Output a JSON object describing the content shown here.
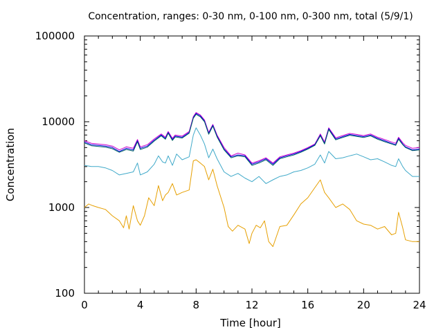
{
  "chart_data": {
    "type": "line",
    "title": "Concentration, ranges: 0-30 nm, 0-100 nm, 0-300 nm, total (5/9/1)",
    "xlabel": "Time [hour]",
    "ylabel": "Concentration",
    "xlim": [
      0,
      24
    ],
    "ylim": [
      100,
      100000
    ],
    "y_scale": "log",
    "grid": false,
    "x_ticks": [
      0,
      4,
      8,
      12,
      16,
      20,
      24
    ],
    "x_tick_labels": [
      "0",
      "4",
      "8",
      "12",
      "16",
      "20",
      "24"
    ],
    "y_ticks": [
      100,
      1000,
      10000,
      100000
    ],
    "y_tick_labels": [
      "100",
      "1000",
      "10000",
      "100000"
    ],
    "series": [
      {
        "color": "#cc00cc",
        "x": [
          0,
          0.5,
          1,
          1.5,
          2,
          2.5,
          3,
          3.5,
          3.8,
          4,
          4.5,
          5,
          5.5,
          5.8,
          6,
          6.3,
          6.5,
          7,
          7.5,
          7.8,
          8,
          8.3,
          8.6,
          8.9,
          9.2,
          9.5,
          10,
          10.5,
          11,
          11.5,
          12,
          12.5,
          13,
          13.5,
          14,
          14.5,
          15,
          15.5,
          16,
          16.5,
          16.9,
          17.2,
          17.5,
          18,
          18.5,
          19,
          19.5,
          20,
          20.5,
          21,
          21.5,
          22,
          22.3,
          22.5,
          22.8,
          23,
          23.5,
          24
        ],
        "values": [
          6000,
          5600,
          5500,
          5400,
          5200,
          4700,
          5100,
          4900,
          6200,
          5100,
          5400,
          6300,
          7200,
          6600,
          7700,
          6400,
          7000,
          6800,
          7700,
          11500,
          12800,
          12000,
          10500,
          7500,
          9300,
          7000,
          5000,
          4000,
          4300,
          4100,
          3300,
          3500,
          3800,
          3300,
          3900,
          4100,
          4300,
          4600,
          5000,
          5500,
          7200,
          5800,
          8500,
          6500,
          6900,
          7300,
          7100,
          6900,
          7200,
          6600,
          6200,
          5800,
          5600,
          6600,
          5700,
          5300,
          4900,
          5000
        ]
      },
      {
        "color": "#0000dd",
        "x": [
          0,
          0.5,
          1,
          1.5,
          2,
          2.5,
          3,
          3.5,
          3.8,
          4,
          4.5,
          5,
          5.5,
          5.8,
          6,
          6.3,
          6.5,
          7,
          7.5,
          7.8,
          8,
          8.3,
          8.6,
          8.9,
          9.2,
          9.5,
          10,
          10.5,
          11,
          11.5,
          12,
          12.5,
          13,
          13.5,
          14,
          14.5,
          15,
          15.5,
          16,
          16.5,
          16.9,
          17.2,
          17.5,
          18,
          18.5,
          19,
          19.5,
          20,
          20.5,
          21,
          21.5,
          22,
          22.3,
          22.5,
          22.8,
          23,
          23.5,
          24
        ],
        "values": [
          5800,
          5400,
          5300,
          5200,
          5000,
          4500,
          4900,
          4700,
          6000,
          4900,
          5200,
          6100,
          7000,
          6400,
          7500,
          6200,
          6800,
          6600,
          7500,
          11200,
          12500,
          11700,
          10200,
          7300,
          9100,
          6800,
          4800,
          3900,
          4100,
          4000,
          3200,
          3400,
          3700,
          3200,
          3800,
          4000,
          4200,
          4500,
          4900,
          5400,
          7000,
          5600,
          8300,
          6300,
          6700,
          7100,
          6900,
          6700,
          7000,
          6400,
          6000,
          5600,
          5400,
          6400,
          5500,
          5100,
          4700,
          4800
        ]
      },
      {
        "color": "#006464",
        "x": [
          0,
          0.5,
          1,
          1.5,
          2,
          2.5,
          3,
          3.5,
          3.8,
          4,
          4.5,
          5,
          5.5,
          5.8,
          6,
          6.3,
          6.5,
          7,
          7.5,
          7.8,
          8,
          8.3,
          8.6,
          8.9,
          9.2,
          9.5,
          10,
          10.5,
          11,
          11.5,
          12,
          12.5,
          13,
          13.5,
          14,
          14.5,
          15,
          15.5,
          16,
          16.5,
          16.9,
          17.2,
          17.5,
          18,
          18.5,
          19,
          19.5,
          20,
          20.5,
          21,
          21.5,
          22,
          22.3,
          22.5,
          22.8,
          23,
          23.5,
          24
        ],
        "values": [
          5650,
          5250,
          5150,
          5050,
          4850,
          4400,
          4750,
          4550,
          5850,
          4750,
          5050,
          5950,
          6850,
          6250,
          7350,
          6050,
          6650,
          6450,
          7350,
          11000,
          12200,
          11400,
          10000,
          7150,
          8900,
          6650,
          4700,
          3800,
          4000,
          3900,
          3100,
          3300,
          3600,
          3100,
          3700,
          3900,
          4100,
          4400,
          4800,
          5300,
          6850,
          5500,
          8100,
          6150,
          6550,
          6950,
          6750,
          6550,
          6850,
          6250,
          5850,
          5500,
          5300,
          6250,
          5400,
          5000,
          4600,
          4700
        ]
      },
      {
        "color": "#3fa9c9",
        "x": [
          0,
          0.5,
          1,
          1.5,
          2,
          2.5,
          3,
          3.5,
          3.8,
          4,
          4.5,
          5,
          5.3,
          5.6,
          5.8,
          6,
          6.3,
          6.6,
          7,
          7.5,
          7.8,
          8,
          8.3,
          8.6,
          8.9,
          9.2,
          9.5,
          10,
          10.5,
          11,
          11.5,
          12,
          12.5,
          13,
          13.5,
          14,
          14.5,
          15,
          15.5,
          16,
          16.5,
          16.9,
          17.2,
          17.5,
          18,
          18.5,
          19,
          19.5,
          20,
          20.5,
          21,
          21.5,
          22,
          22.3,
          22.5,
          22.8,
          23,
          23.5,
          24
        ],
        "values": [
          3100,
          3000,
          3000,
          2900,
          2700,
          2400,
          2500,
          2600,
          3300,
          2400,
          2600,
          3200,
          4000,
          3400,
          3300,
          4000,
          3100,
          4200,
          3600,
          3900,
          7000,
          8500,
          7000,
          5500,
          3800,
          4800,
          3700,
          2600,
          2300,
          2500,
          2200,
          2000,
          2300,
          1900,
          2100,
          2300,
          2400,
          2600,
          2700,
          2900,
          3200,
          4100,
          3300,
          4500,
          3700,
          3800,
          4000,
          4200,
          3900,
          3600,
          3700,
          3400,
          3100,
          3000,
          3700,
          3000,
          2700,
          2300,
          2300
        ]
      },
      {
        "color": "#e69f00",
        "x": [
          0,
          0.3,
          0.6,
          1,
          1.5,
          2,
          2.5,
          2.8,
          3,
          3.2,
          3.5,
          3.8,
          4,
          4.3,
          4.6,
          5,
          5.3,
          5.6,
          5.8,
          6,
          6.3,
          6.6,
          7,
          7.5,
          7.8,
          8,
          8.3,
          8.6,
          8.9,
          9.2,
          9.5,
          10,
          10.3,
          10.6,
          11,
          11.5,
          11.8,
          12,
          12.3,
          12.6,
          12.9,
          13.2,
          13.5,
          14,
          14.5,
          15,
          15.5,
          16,
          16.5,
          16.9,
          17.2,
          17.5,
          18,
          18.5,
          19,
          19.5,
          20,
          20.5,
          21,
          21.5,
          22,
          22.3,
          22.5,
          22.8,
          23,
          23.5,
          24
        ],
        "values": [
          1000,
          1100,
          1050,
          1000,
          950,
          800,
          700,
          580,
          800,
          560,
          1050,
          700,
          620,
          800,
          1300,
          1050,
          1800,
          1200,
          1400,
          1500,
          1900,
          1400,
          1500,
          1600,
          3500,
          3600,
          3300,
          3000,
          2100,
          2800,
          1800,
          1000,
          600,
          530,
          620,
          560,
          380,
          500,
          620,
          580,
          700,
          400,
          350,
          600,
          620,
          820,
          1100,
          1300,
          1700,
          2100,
          1500,
          1300,
          1000,
          1100,
          950,
          700,
          640,
          620,
          560,
          600,
          480,
          500,
          880,
          580,
          420,
          400,
          400
        ]
      }
    ]
  }
}
